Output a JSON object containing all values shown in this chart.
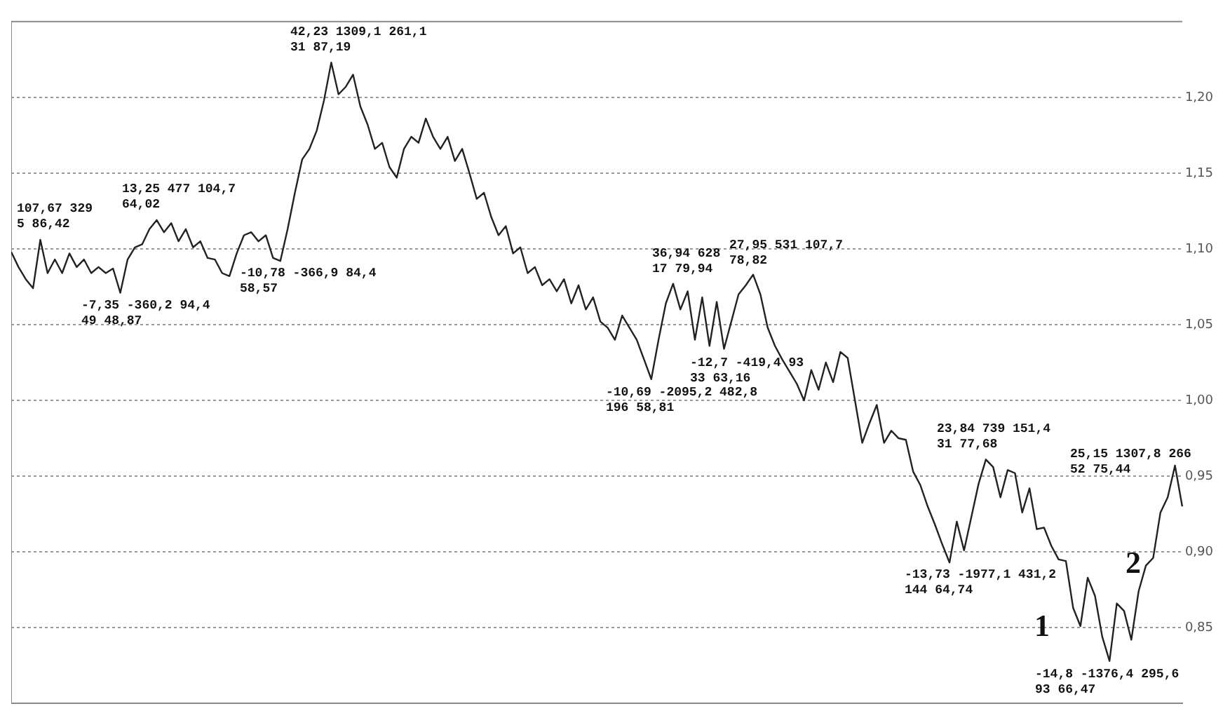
{
  "chart_data": {
    "type": "line",
    "tick_labels": "y",
    "grid": "y",
    "marker": "none",
    "line_style": "solid",
    "categories": [
      null,
      null,
      null,
      null,
      null,
      null,
      null,
      null,
      null,
      null,
      null,
      null,
      null,
      null,
      null,
      null,
      null,
      null,
      null,
      null,
      null,
      null,
      null,
      null,
      null,
      null,
      null,
      null,
      null,
      null,
      null,
      null,
      null,
      null,
      null,
      null,
      null,
      null,
      null,
      null,
      null,
      null,
      null,
      null,
      null,
      null,
      null,
      null,
      null,
      null,
      null,
      null,
      null,
      null,
      null,
      null,
      null,
      null,
      null,
      null,
      null,
      null,
      null,
      null,
      null,
      null,
      null,
      null,
      null,
      null,
      null,
      null,
      null,
      null,
      null,
      null,
      null,
      null,
      null,
      null,
      null,
      null,
      null,
      null,
      null,
      null,
      null,
      null,
      null,
      null,
      null,
      null,
      null,
      null,
      null,
      null,
      null,
      null,
      null,
      null,
      null,
      null,
      null,
      null,
      null,
      null,
      null,
      null,
      null,
      null,
      null,
      null,
      null,
      null,
      null,
      null,
      null,
      null,
      null,
      null,
      null,
      null,
      null,
      null,
      null,
      null,
      null,
      null,
      null,
      null,
      null,
      null,
      null,
      null,
      null,
      null,
      null,
      null,
      null,
      null,
      null,
      null,
      null,
      null,
      null,
      null,
      null,
      null,
      null,
      null,
      null,
      null,
      null,
      null,
      null,
      null,
      null,
      null,
      null,
      null,
      null,
      null
    ],
    "ylim": [
      0.8,
      1.25
    ],
    "yticks": [
      {
        "value": 0.85,
        "label": "0,85"
      },
      {
        "value": 0.9,
        "label": "0,90"
      },
      {
        "value": 0.95,
        "label": "0,95"
      },
      {
        "value": 1.0,
        "label": "1,00"
      },
      {
        "value": 1.05,
        "label": "1,05"
      },
      {
        "value": 1.1,
        "label": "1,10"
      },
      {
        "value": 1.15,
        "label": "1,15"
      },
      {
        "value": 1.2,
        "label": "1,20"
      }
    ],
    "series": [
      {
        "color": "#222222",
        "values": [
          1.098,
          1.088,
          1.08,
          1.074,
          1.106,
          1.084,
          1.093,
          1.084,
          1.097,
          1.088,
          1.093,
          1.084,
          1.088,
          1.084,
          1.087,
          1.071,
          1.093,
          1.101,
          1.103,
          1.113,
          1.119,
          1.111,
          1.117,
          1.105,
          1.113,
          1.101,
          1.105,
          1.094,
          1.093,
          1.084,
          1.082,
          1.097,
          1.109,
          1.111,
          1.105,
          1.109,
          1.094,
          1.092,
          1.113,
          1.137,
          1.159,
          1.166,
          1.178,
          1.198,
          1.223,
          1.202,
          1.207,
          1.215,
          1.194,
          1.182,
          1.166,
          1.17,
          1.154,
          1.147,
          1.166,
          1.174,
          1.17,
          1.186,
          1.174,
          1.166,
          1.174,
          1.158,
          1.166,
          1.15,
          1.133,
          1.137,
          1.121,
          1.109,
          1.115,
          1.097,
          1.101,
          1.084,
          1.088,
          1.076,
          1.08,
          1.072,
          1.08,
          1.064,
          1.076,
          1.06,
          1.068,
          1.052,
          1.048,
          1.04,
          1.056,
          1.048,
          1.04,
          1.027,
          1.014,
          1.04,
          1.064,
          1.077,
          1.06,
          1.072,
          1.04,
          1.068,
          1.036,
          1.065,
          1.034,
          1.052,
          1.07,
          1.076,
          1.083,
          1.07,
          1.048,
          1.036,
          1.027,
          1.019,
          1.011,
          1.0,
          1.02,
          1.007,
          1.025,
          1.012,
          1.032,
          1.028,
          1.0,
          0.972,
          0.985,
          0.997,
          0.972,
          0.98,
          0.975,
          0.974,
          0.953,
          0.944,
          0.93,
          0.918,
          0.905,
          0.893,
          0.92,
          0.901,
          0.923,
          0.945,
          0.961,
          0.956,
          0.936,
          0.954,
          0.952,
          0.926,
          0.942,
          0.915,
          0.916,
          0.904,
          0.895,
          0.894,
          0.863,
          0.851,
          0.883,
          0.871,
          0.844,
          0.828,
          0.866,
          0.861,
          0.842,
          0.874,
          0.891,
          0.896,
          0.926,
          0.936,
          0.957,
          0.93
        ]
      }
    ],
    "annotations": [
      "107,67 329\n5 86,42",
      "-7,35 -360,2 94,4\n49 48,87",
      "13,25 477 104,7\n64,02",
      "-10,78 -366,9 84,4\n58,57",
      "42,23 1309,1 261,1\n31 87,19",
      "-10,69 -2095,2 482,8\n196 58,81",
      "36,94 628\n17 79,94",
      "-12,7 -419,4 93\n33 63,16",
      "27,95 531 107,7\n78,82",
      "-13,73 -1977,1 431,2\n144 64,74",
      "23,84 739 151,4\n31 77,68",
      "1",
      "-14,8 -1376,4 295,6\n93 66,47",
      "2",
      "25,15 1307,8 266\n52 75,44"
    ]
  }
}
